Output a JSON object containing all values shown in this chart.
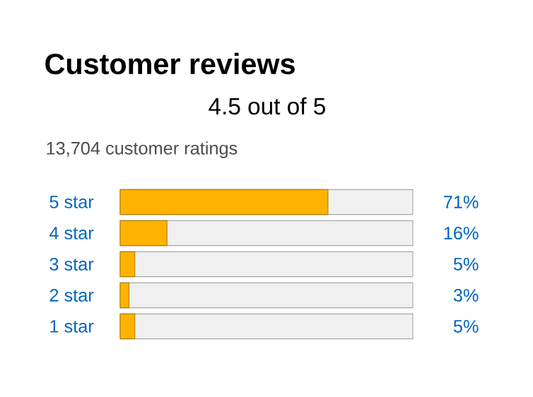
{
  "chart_data": {
    "type": "bar",
    "orientation": "horizontal",
    "title": "Customer reviews",
    "annotations": [
      "4.5 out of 5",
      "13,704 customer ratings"
    ],
    "categories": [
      "5 star",
      "4 star",
      "3 star",
      "2 star",
      "1 star"
    ],
    "values": [
      71,
      16,
      5,
      3,
      5
    ],
    "value_labels": [
      "71%",
      "16%",
      "5%",
      "3%",
      "5%"
    ],
    "color": "#ffb300",
    "xlim": [
      0,
      100
    ],
    "tick_labels": "y"
  }
}
